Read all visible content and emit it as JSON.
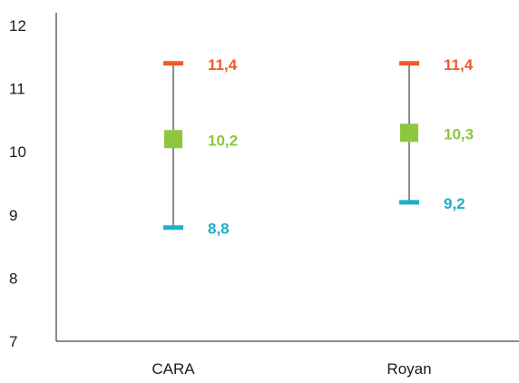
{
  "chart_data": {
    "type": "errorbar",
    "categories": [
      "CARA",
      "Royan"
    ],
    "series": [
      {
        "key": "max",
        "values": [
          11.4,
          11.4
        ],
        "labels": [
          "11,4",
          "11,4"
        ],
        "color": "#f05a28"
      },
      {
        "key": "mid",
        "values": [
          10.2,
          10.3
        ],
        "labels": [
          "10,2",
          "10,3"
        ],
        "color": "#8dc63f"
      },
      {
        "key": "min",
        "values": [
          8.8,
          9.2
        ],
        "labels": [
          "8,8",
          "9,2"
        ],
        "color": "#1ab0c8"
      }
    ],
    "ylim": [
      7,
      12
    ],
    "yticks": [
      "7",
      "8",
      "9",
      "10",
      "11",
      "12"
    ],
    "xlabel": "",
    "ylabel": "",
    "grid": false,
    "whisker_color": "#1a1a1a",
    "axis_color": "#1a1a1a"
  }
}
